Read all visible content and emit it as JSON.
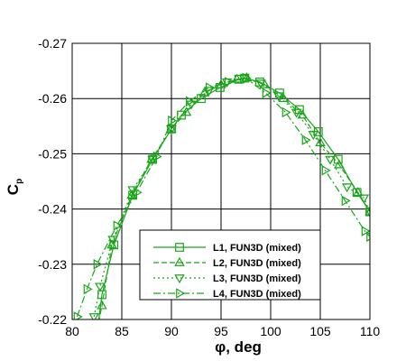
{
  "chart_data": {
    "type": "line",
    "xlabel": "φ, deg",
    "ylabel_main": "C",
    "ylabel_sub": "p",
    "xlim": [
      80,
      110
    ],
    "ylim": [
      -0.22,
      -0.27
    ],
    "y_inverted": true,
    "grid": true,
    "legend_position": "bottom-right",
    "xticks": [
      80,
      85,
      90,
      95,
      100,
      105,
      110
    ],
    "yticks": [
      -0.22,
      -0.23,
      -0.24,
      -0.25,
      -0.26,
      -0.27
    ],
    "xtick_labels": [
      "80",
      "85",
      "90",
      "95",
      "100",
      "105",
      "110"
    ],
    "ytick_labels": [
      "-0.22",
      "-0.23",
      "-0.24",
      "-0.25",
      "-0.26",
      "-0.27"
    ],
    "colors": {
      "series": "#1aa51a",
      "grid": "#000000"
    },
    "series": [
      {
        "name": "L1, FUN3D (mixed)",
        "marker": "square",
        "dash": "",
        "x": [
          82.5,
          83.0,
          84.2,
          86.1,
          88.1,
          90.0,
          91.0,
          93.0,
          94.9,
          96.8,
          97.4,
          98.9,
          100.9,
          102.9,
          104.8,
          106.8,
          108.7,
          110.0
        ],
        "y": [
          -0.2175,
          -0.2245,
          -0.2335,
          -0.2425,
          -0.249,
          -0.2545,
          -0.257,
          -0.26,
          -0.262,
          -0.2635,
          -0.2637,
          -0.263,
          -0.261,
          -0.258,
          -0.254,
          -0.249,
          -0.243,
          -0.2395
        ]
      },
      {
        "name": "L2, FUN3D (mixed)",
        "marker": "triangle-up",
        "dash": "6,3",
        "x": [
          82.5,
          83.0,
          84.0,
          86.0,
          88.0,
          90.0,
          91.5,
          93.3,
          95.0,
          96.6,
          97.6,
          99.4,
          101.3,
          103.2,
          105.0,
          106.9,
          108.8,
          110.0
        ],
        "y": [
          -0.218,
          -0.2225,
          -0.2335,
          -0.2425,
          -0.249,
          -0.2545,
          -0.2575,
          -0.261,
          -0.2625,
          -0.2635,
          -0.2637,
          -0.2625,
          -0.26,
          -0.257,
          -0.252,
          -0.248,
          -0.243,
          -0.2395
        ]
      },
      {
        "name": "L3, FUN3D (mixed)",
        "marker": "triangle-down",
        "dash": "2,3",
        "x": [
          82.2,
          82.8,
          84.1,
          86.1,
          88.1,
          90.0,
          92.0,
          93.8,
          95.6,
          97.3,
          99.0,
          100.8,
          102.6,
          104.3,
          106.0,
          107.7,
          109.4,
          110.0
        ],
        "y": [
          -0.2205,
          -0.226,
          -0.2345,
          -0.2435,
          -0.249,
          -0.2545,
          -0.259,
          -0.2615,
          -0.263,
          -0.2637,
          -0.2628,
          -0.2605,
          -0.2575,
          -0.2535,
          -0.249,
          -0.244,
          -0.242,
          -0.2395
        ]
      },
      {
        "name": "L4, FUN3D (mixed)",
        "marker": "triangle-right",
        "dash": "8,3,2,3",
        "x": [
          80.5,
          81.5,
          82.5,
          84.5,
          86.5,
          88.5,
          90.0,
          91.8,
          93.8,
          95.7,
          97.5,
          99.5,
          101.5,
          103.5,
          105.5,
          107.5,
          109.5,
          110.0
        ],
        "y": [
          -0.2205,
          -0.2255,
          -0.23,
          -0.237,
          -0.243,
          -0.2495,
          -0.256,
          -0.2595,
          -0.262,
          -0.263,
          -0.2637,
          -0.261,
          -0.2575,
          -0.2525,
          -0.247,
          -0.2415,
          -0.236,
          -0.235
        ]
      }
    ]
  }
}
